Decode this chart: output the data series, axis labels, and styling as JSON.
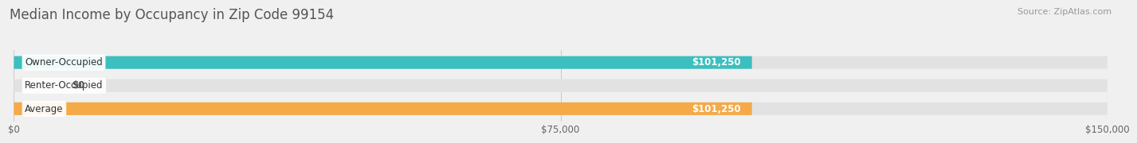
{
  "title": "Median Income by Occupancy in Zip Code 99154",
  "source": "Source: ZipAtlas.com",
  "categories": [
    "Owner-Occupied",
    "Renter-Occupied",
    "Average"
  ],
  "values": [
    101250,
    0,
    101250
  ],
  "bar_colors": [
    "#3bbfbf",
    "#c9a8d4",
    "#f5a947"
  ],
  "bar_labels": [
    "$101,250",
    "$0",
    "$101,250"
  ],
  "x_ticks": [
    0,
    75000,
    150000
  ],
  "x_tick_labels": [
    "$0",
    "$75,000",
    "$150,000"
  ],
  "xlim": [
    0,
    150000
  ],
  "background_color": "#f0f0f0",
  "bar_background_color": "#e2e2e2",
  "title_fontsize": 12,
  "source_fontsize": 8,
  "label_fontsize": 8.5,
  "tick_fontsize": 8.5,
  "cat_label_fontsize": 8.5
}
